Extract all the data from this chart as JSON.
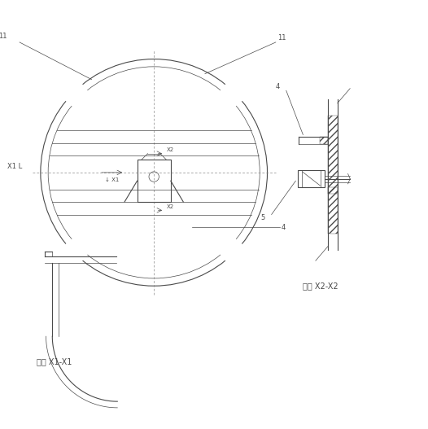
{
  "bg_color": "#ffffff",
  "line_color": "#4a4a4a",
  "title_x1x1": "剖面 X1-X1",
  "title_x2x2": "剖面 X2-X2"
}
